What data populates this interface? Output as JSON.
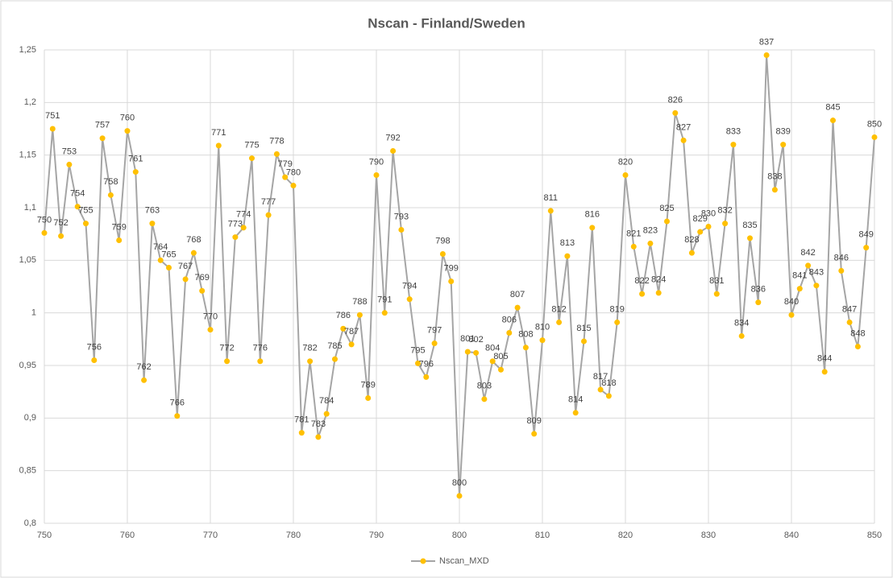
{
  "chart_data": {
    "type": "line",
    "title": "Nscan - Finland/Sweden",
    "x": [
      750,
      751,
      752,
      753,
      754,
      755,
      756,
      757,
      758,
      759,
      760,
      761,
      762,
      763,
      764,
      765,
      766,
      767,
      768,
      769,
      770,
      771,
      772,
      773,
      774,
      775,
      776,
      777,
      778,
      779,
      780,
      781,
      782,
      783,
      784,
      785,
      786,
      787,
      788,
      789,
      790,
      791,
      792,
      793,
      794,
      795,
      796,
      797,
      798,
      799,
      800,
      801,
      802,
      803,
      804,
      805,
      806,
      807,
      808,
      809,
      810,
      811,
      812,
      813,
      814,
      815,
      816,
      817,
      818,
      819,
      820,
      821,
      822,
      823,
      824,
      825,
      826,
      827,
      828,
      829,
      830,
      831,
      832,
      833,
      834,
      835,
      836,
      837,
      838,
      839,
      840,
      841,
      842,
      843,
      844,
      845,
      846,
      847,
      848,
      849,
      850
    ],
    "series": [
      {
        "name": "Nscan_MXD",
        "color": "#a5a5a5",
        "marker_color": "#ffc000",
        "values": [
          1.076,
          1.175,
          1.073,
          1.141,
          1.101,
          1.085,
          0.955,
          1.166,
          1.112,
          1.069,
          1.173,
          1.134,
          0.936,
          1.085,
          1.05,
          1.043,
          0.902,
          1.032,
          1.057,
          1.021,
          0.984,
          1.159,
          0.954,
          1.072,
          1.081,
          1.147,
          0.954,
          1.093,
          1.151,
          1.129,
          1.121,
          0.886,
          0.954,
          0.882,
          0.904,
          0.956,
          0.985,
          0.97,
          0.998,
          0.919,
          1.131,
          1.0,
          1.154,
          1.079,
          1.013,
          0.952,
          0.939,
          0.971,
          1.056,
          1.03,
          0.826,
          0.963,
          0.962,
          0.918,
          0.954,
          0.946,
          0.981,
          1.005,
          0.967,
          0.885,
          0.974,
          1.097,
          0.991,
          1.054,
          0.905,
          0.973,
          1.081,
          0.927,
          0.921,
          0.991,
          1.131,
          1.063,
          1.018,
          1.066,
          1.019,
          1.087,
          1.19,
          1.164,
          1.057,
          1.077,
          1.082,
          1.018,
          1.085,
          1.16,
          0.978,
          1.071,
          1.01,
          1.245,
          1.117,
          1.16,
          0.998,
          1.023,
          1.045,
          1.026,
          0.944,
          1.183,
          1.04,
          0.991,
          0.968,
          1.062,
          1.167
        ]
      }
    ],
    "xlim": [
      750,
      850
    ],
    "xticks": [
      750,
      760,
      770,
      780,
      790,
      800,
      810,
      820,
      830,
      840,
      850
    ],
    "ylim": [
      0.8,
      1.25
    ],
    "yticks": [
      {
        "value": 0.8,
        "label": "0,8"
      },
      {
        "value": 0.85,
        "label": "0,85"
      },
      {
        "value": 0.9,
        "label": "0,9"
      },
      {
        "value": 0.95,
        "label": "0,95"
      },
      {
        "value": 1,
        "label": "1"
      },
      {
        "value": 1.05,
        "label": "1,05"
      },
      {
        "value": 1.1,
        "label": "1,1"
      },
      {
        "value": 1.15,
        "label": "1,15"
      },
      {
        "value": 1.2,
        "label": "1,2"
      },
      {
        "value": 1.25,
        "label": "1,25"
      }
    ],
    "grid": true,
    "legend": "bottom"
  }
}
